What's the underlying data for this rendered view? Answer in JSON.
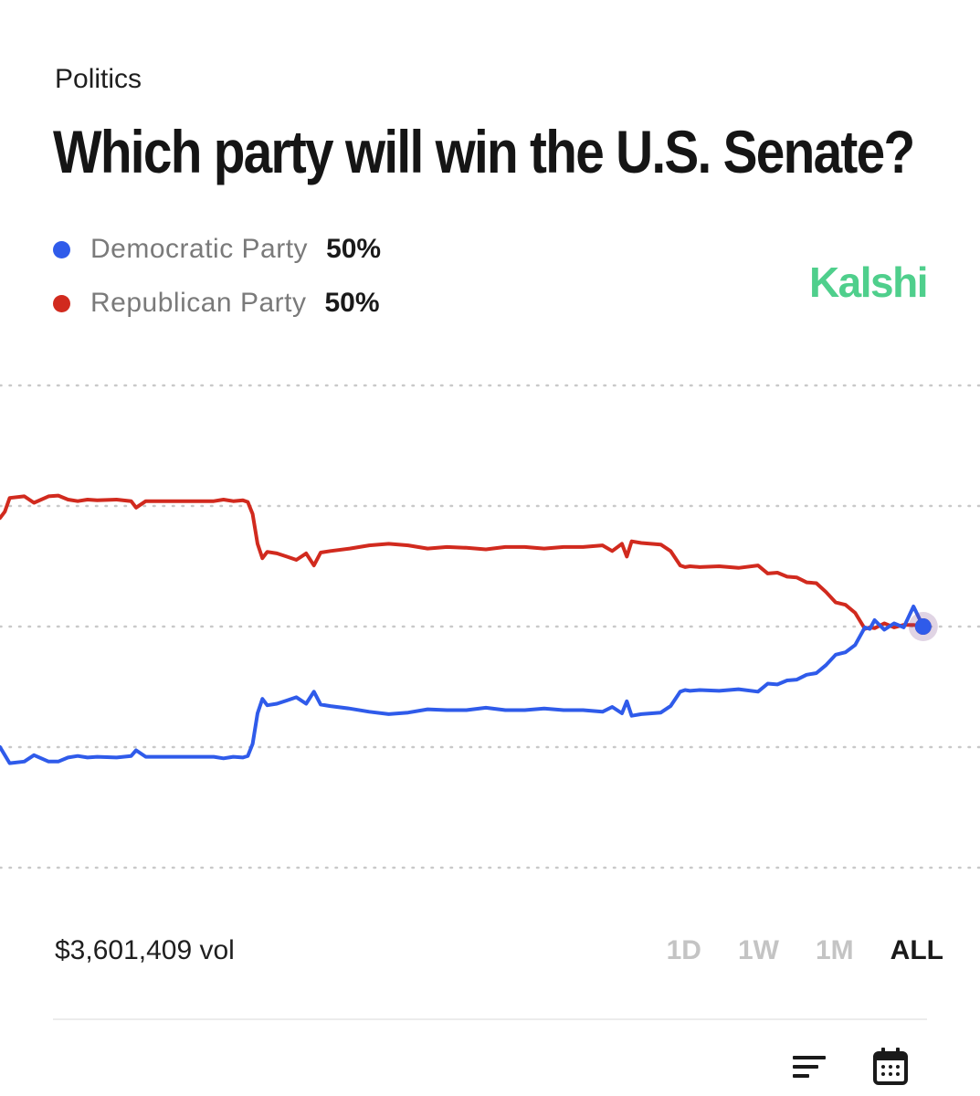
{
  "header": {
    "category": "Politics",
    "title": "Which party will win the U.S. Senate?"
  },
  "legend": [
    {
      "name": "Democratic Party",
      "percent": "50%",
      "color": "#2f5bea"
    },
    {
      "name": "Republican Party",
      "percent": "50%",
      "color": "#d12a1e"
    }
  ],
  "brand": {
    "name": "Kalshi",
    "color": "#4fcf8c"
  },
  "chart_data": {
    "type": "line",
    "y_unit": "percent",
    "ylim": [
      20,
      80
    ],
    "gridlines": [
      20,
      35,
      50,
      65,
      80
    ],
    "grid": "dotted horizontal",
    "x_range": [
      0,
      100
    ],
    "series": [
      {
        "name": "Republican Party",
        "color": "#d12a1e",
        "x": [
          0,
          0.5,
          1,
          2.5,
          3.5,
          5,
          6,
          7,
          8,
          9,
          10,
          12,
          13.5,
          14,
          15,
          20,
          22,
          23,
          24,
          25,
          25.5,
          26,
          26.5,
          27,
          27.5,
          28.5,
          29.5,
          30.5,
          31.5,
          32.3,
          33,
          34,
          36,
          38,
          40,
          42,
          44,
          46,
          48,
          50,
          52,
          54,
          56,
          58,
          60,
          62,
          63,
          64,
          64.5,
          65,
          66,
          68,
          69,
          70,
          70.5,
          71,
          72,
          74,
          76,
          78,
          79,
          80,
          81,
          82,
          83,
          84,
          85,
          86,
          87,
          88,
          89,
          89.5,
          90,
          91,
          92,
          93,
          94,
          95
        ],
        "values": [
          63.5,
          64.3,
          66,
          66.2,
          65.4,
          66.2,
          66.3,
          65.8,
          65.6,
          65.8,
          65.7,
          65.8,
          65.6,
          64.8,
          65.6,
          65.6,
          65.6,
          65.8,
          65.6,
          65.7,
          65.5,
          64,
          60.3,
          58.5,
          59.3,
          59.1,
          58.7,
          58.3,
          59.1,
          57.6,
          59.2,
          59.4,
          59.7,
          60.1,
          60.3,
          60.1,
          59.7,
          59.9,
          59.8,
          59.6,
          59.9,
          59.9,
          59.7,
          59.9,
          59.9,
          60.1,
          59.4,
          60.3,
          58.7,
          60.6,
          60.4,
          60.2,
          59.4,
          57.6,
          57.4,
          57.5,
          57.4,
          57.5,
          57.3,
          57.6,
          56.6,
          56.7,
          56.2,
          56.1,
          55.5,
          55.4,
          54.3,
          53,
          52.7,
          51.7,
          49.7,
          49.9,
          49.8,
          50.4,
          49.9,
          50.2,
          50.2,
          50.0
        ]
      },
      {
        "name": "Democratic Party",
        "color": "#2f5bea",
        "x": [
          0,
          0.5,
          1,
          2.5,
          3.5,
          5,
          6,
          7,
          8,
          9,
          10,
          12,
          13.5,
          14,
          15,
          20,
          22,
          23,
          24,
          25,
          25.5,
          26,
          26.5,
          27,
          27.5,
          28.5,
          29.5,
          30.5,
          31.5,
          32.3,
          33,
          34,
          36,
          38,
          40,
          42,
          44,
          46,
          48,
          50,
          52,
          54,
          56,
          58,
          60,
          62,
          63,
          64,
          64.5,
          65,
          66,
          68,
          69,
          70,
          70.5,
          71,
          72,
          74,
          76,
          78,
          79,
          80,
          81,
          82,
          83,
          84,
          85,
          86,
          87,
          88,
          89,
          89.5,
          90,
          91,
          92,
          93,
          94,
          95
        ],
        "values": [
          35,
          34,
          33,
          33.2,
          34,
          33.2,
          33.2,
          33.7,
          33.9,
          33.7,
          33.8,
          33.7,
          33.9,
          34.6,
          33.8,
          33.8,
          33.8,
          33.6,
          33.8,
          33.7,
          33.9,
          35.4,
          39.2,
          41,
          40.2,
          40.4,
          40.8,
          41.2,
          40.4,
          41.9,
          40.3,
          40.1,
          39.8,
          39.4,
          39.1,
          39.3,
          39.7,
          39.6,
          39.6,
          39.9,
          39.6,
          39.6,
          39.8,
          39.6,
          39.6,
          39.4,
          40,
          39.2,
          40.7,
          38.9,
          39.1,
          39.3,
          40.1,
          41.9,
          42.1,
          42,
          42.1,
          42,
          42.2,
          41.9,
          42.9,
          42.8,
          43.3,
          43.4,
          44,
          44.2,
          45.2,
          46.5,
          46.8,
          47.7,
          49.9,
          49.7,
          50.8,
          49.6,
          50.4,
          49.9,
          52.5,
          50.0
        ]
      }
    ]
  },
  "footer": {
    "volume": "$3,601,409 vol",
    "ranges": [
      "1D",
      "1W",
      "1M",
      "ALL"
    ],
    "active_range": "ALL"
  },
  "icons": {
    "sort": "sort-lines-icon",
    "calendar": "calendar-icon"
  }
}
